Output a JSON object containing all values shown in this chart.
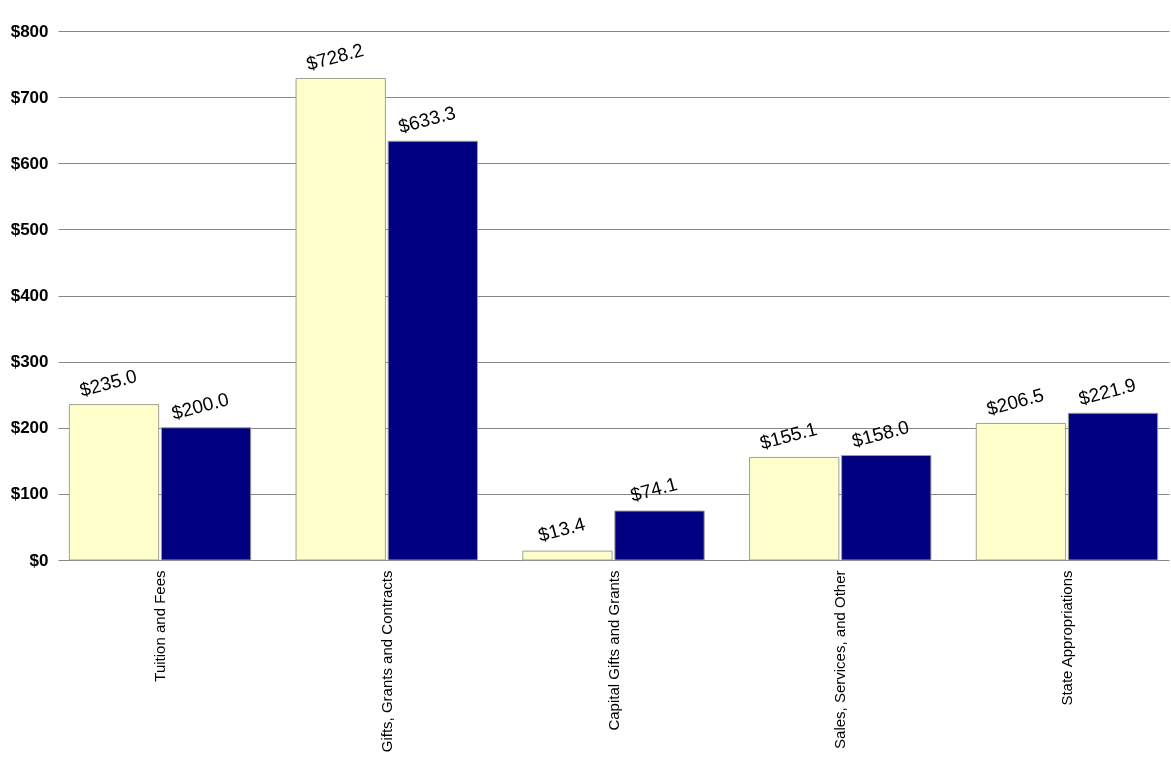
{
  "chart_data": {
    "type": "bar",
    "categories": [
      "Tuition and Fees",
      "Gifts, Grants and Contracts",
      "Capital Gifts and Grants",
      "Sales, Services, and Other",
      "State Appropriations"
    ],
    "series": [
      {
        "color": "#ffffcc",
        "values": [
          235.0,
          728.2,
          13.4,
          155.1,
          206.5
        ],
        "value_labels": [
          "$235.0",
          "$728.2",
          "$13.4",
          "$155.1",
          "$206.5"
        ]
      },
      {
        "color": "#000080",
        "values": [
          200.0,
          633.3,
          74.1,
          158.0,
          221.9
        ],
        "value_labels": [
          "$200.0",
          "$633.3",
          "$74.1",
          "$158.0",
          "$221.9"
        ]
      }
    ],
    "ylim": [
      0,
      800
    ],
    "yticks": [
      {
        "value": 0,
        "label": "$0"
      },
      {
        "value": 100,
        "label": "$100"
      },
      {
        "value": 200,
        "label": "$200"
      },
      {
        "value": 300,
        "label": "$300"
      },
      {
        "value": 400,
        "label": "$400"
      },
      {
        "value": 500,
        "label": "$500"
      },
      {
        "value": 600,
        "label": "$600"
      },
      {
        "value": 700,
        "label": "$700"
      },
      {
        "value": 800,
        "label": "$800"
      }
    ],
    "grid": "y"
  }
}
